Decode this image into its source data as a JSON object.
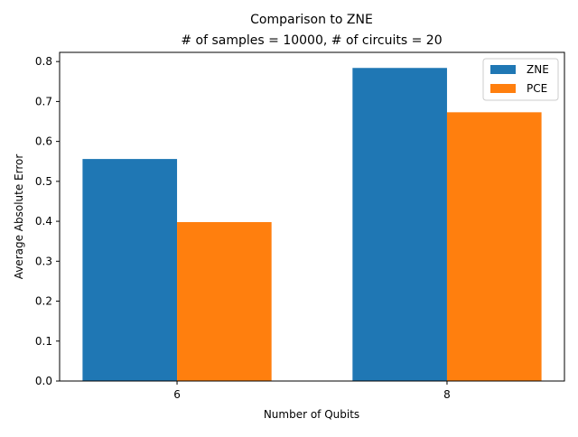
{
  "chart_data": {
    "type": "bar",
    "title": "Comparison to ZNE",
    "subtitle": "# of samples = 10000, # of circuits  = 20",
    "xlabel": "Number of Qubits",
    "ylabel": "Average Absolute Error",
    "categories": [
      "6",
      "8"
    ],
    "series": [
      {
        "name": "ZNE",
        "color": "#1f77b4",
        "values": [
          0.556,
          0.784
        ]
      },
      {
        "name": "PCE",
        "color": "#ff7f0e",
        "values": [
          0.398,
          0.673
        ]
      }
    ],
    "ylim": [
      0,
      0.823
    ],
    "yticks": [
      "0.0",
      "0.1",
      "0.2",
      "0.3",
      "0.4",
      "0.5",
      "0.6",
      "0.7",
      "0.8"
    ],
    "ytick_values": [
      0.0,
      0.1,
      0.2,
      0.3,
      0.4,
      0.5,
      0.6,
      0.7,
      0.8
    ],
    "grid": false,
    "legend_position": "top-right"
  }
}
